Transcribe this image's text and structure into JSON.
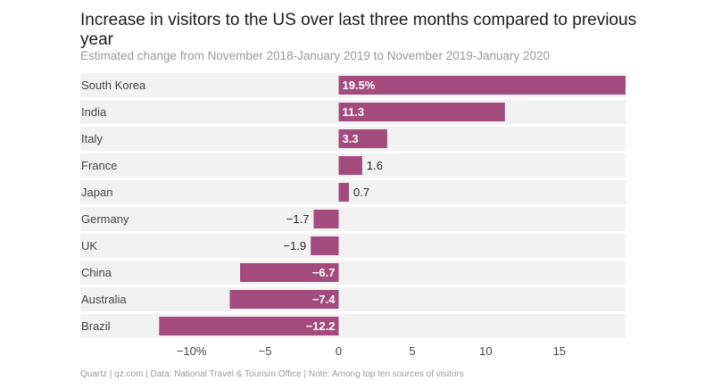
{
  "colors": {
    "bar": "#a24b7c",
    "band": "#f2f2f2",
    "text": "#1a1a1a",
    "muted": "#9a9a9a"
  },
  "footer": "Quartz | qz.com | Data: National Travel & Tourism Office | Note: Among top ten sources of visitors",
  "chart_data": {
    "type": "bar",
    "orientation": "horizontal",
    "title": "Increase in visitors to the US over last three months compared to previous year",
    "subtitle": "Estimated change from November 2018-January 2019 to November 2019-January 2020",
    "categories": [
      "South Korea",
      "India",
      "Italy",
      "France",
      "Japan",
      "Germany",
      "UK",
      "China",
      "Australia",
      "Brazil"
    ],
    "values": [
      19.5,
      11.3,
      3.3,
      1.6,
      0.7,
      -1.7,
      -1.9,
      -6.7,
      -7.4,
      -12.2
    ],
    "value_labels": [
      "19.5%",
      "11.3",
      "3.3",
      "1.6",
      "0.7",
      "−1.7",
      "−1.9",
      "−6.7",
      "−7.4",
      "−12.2"
    ],
    "xticks": [
      -10,
      -5,
      0,
      5,
      10,
      15
    ],
    "xtick_labels": [
      "−10%",
      "−5",
      "0",
      "5",
      "10",
      "15"
    ],
    "xlim": [
      -12.2,
      19.5
    ],
    "xlabel": "",
    "ylabel": ""
  }
}
